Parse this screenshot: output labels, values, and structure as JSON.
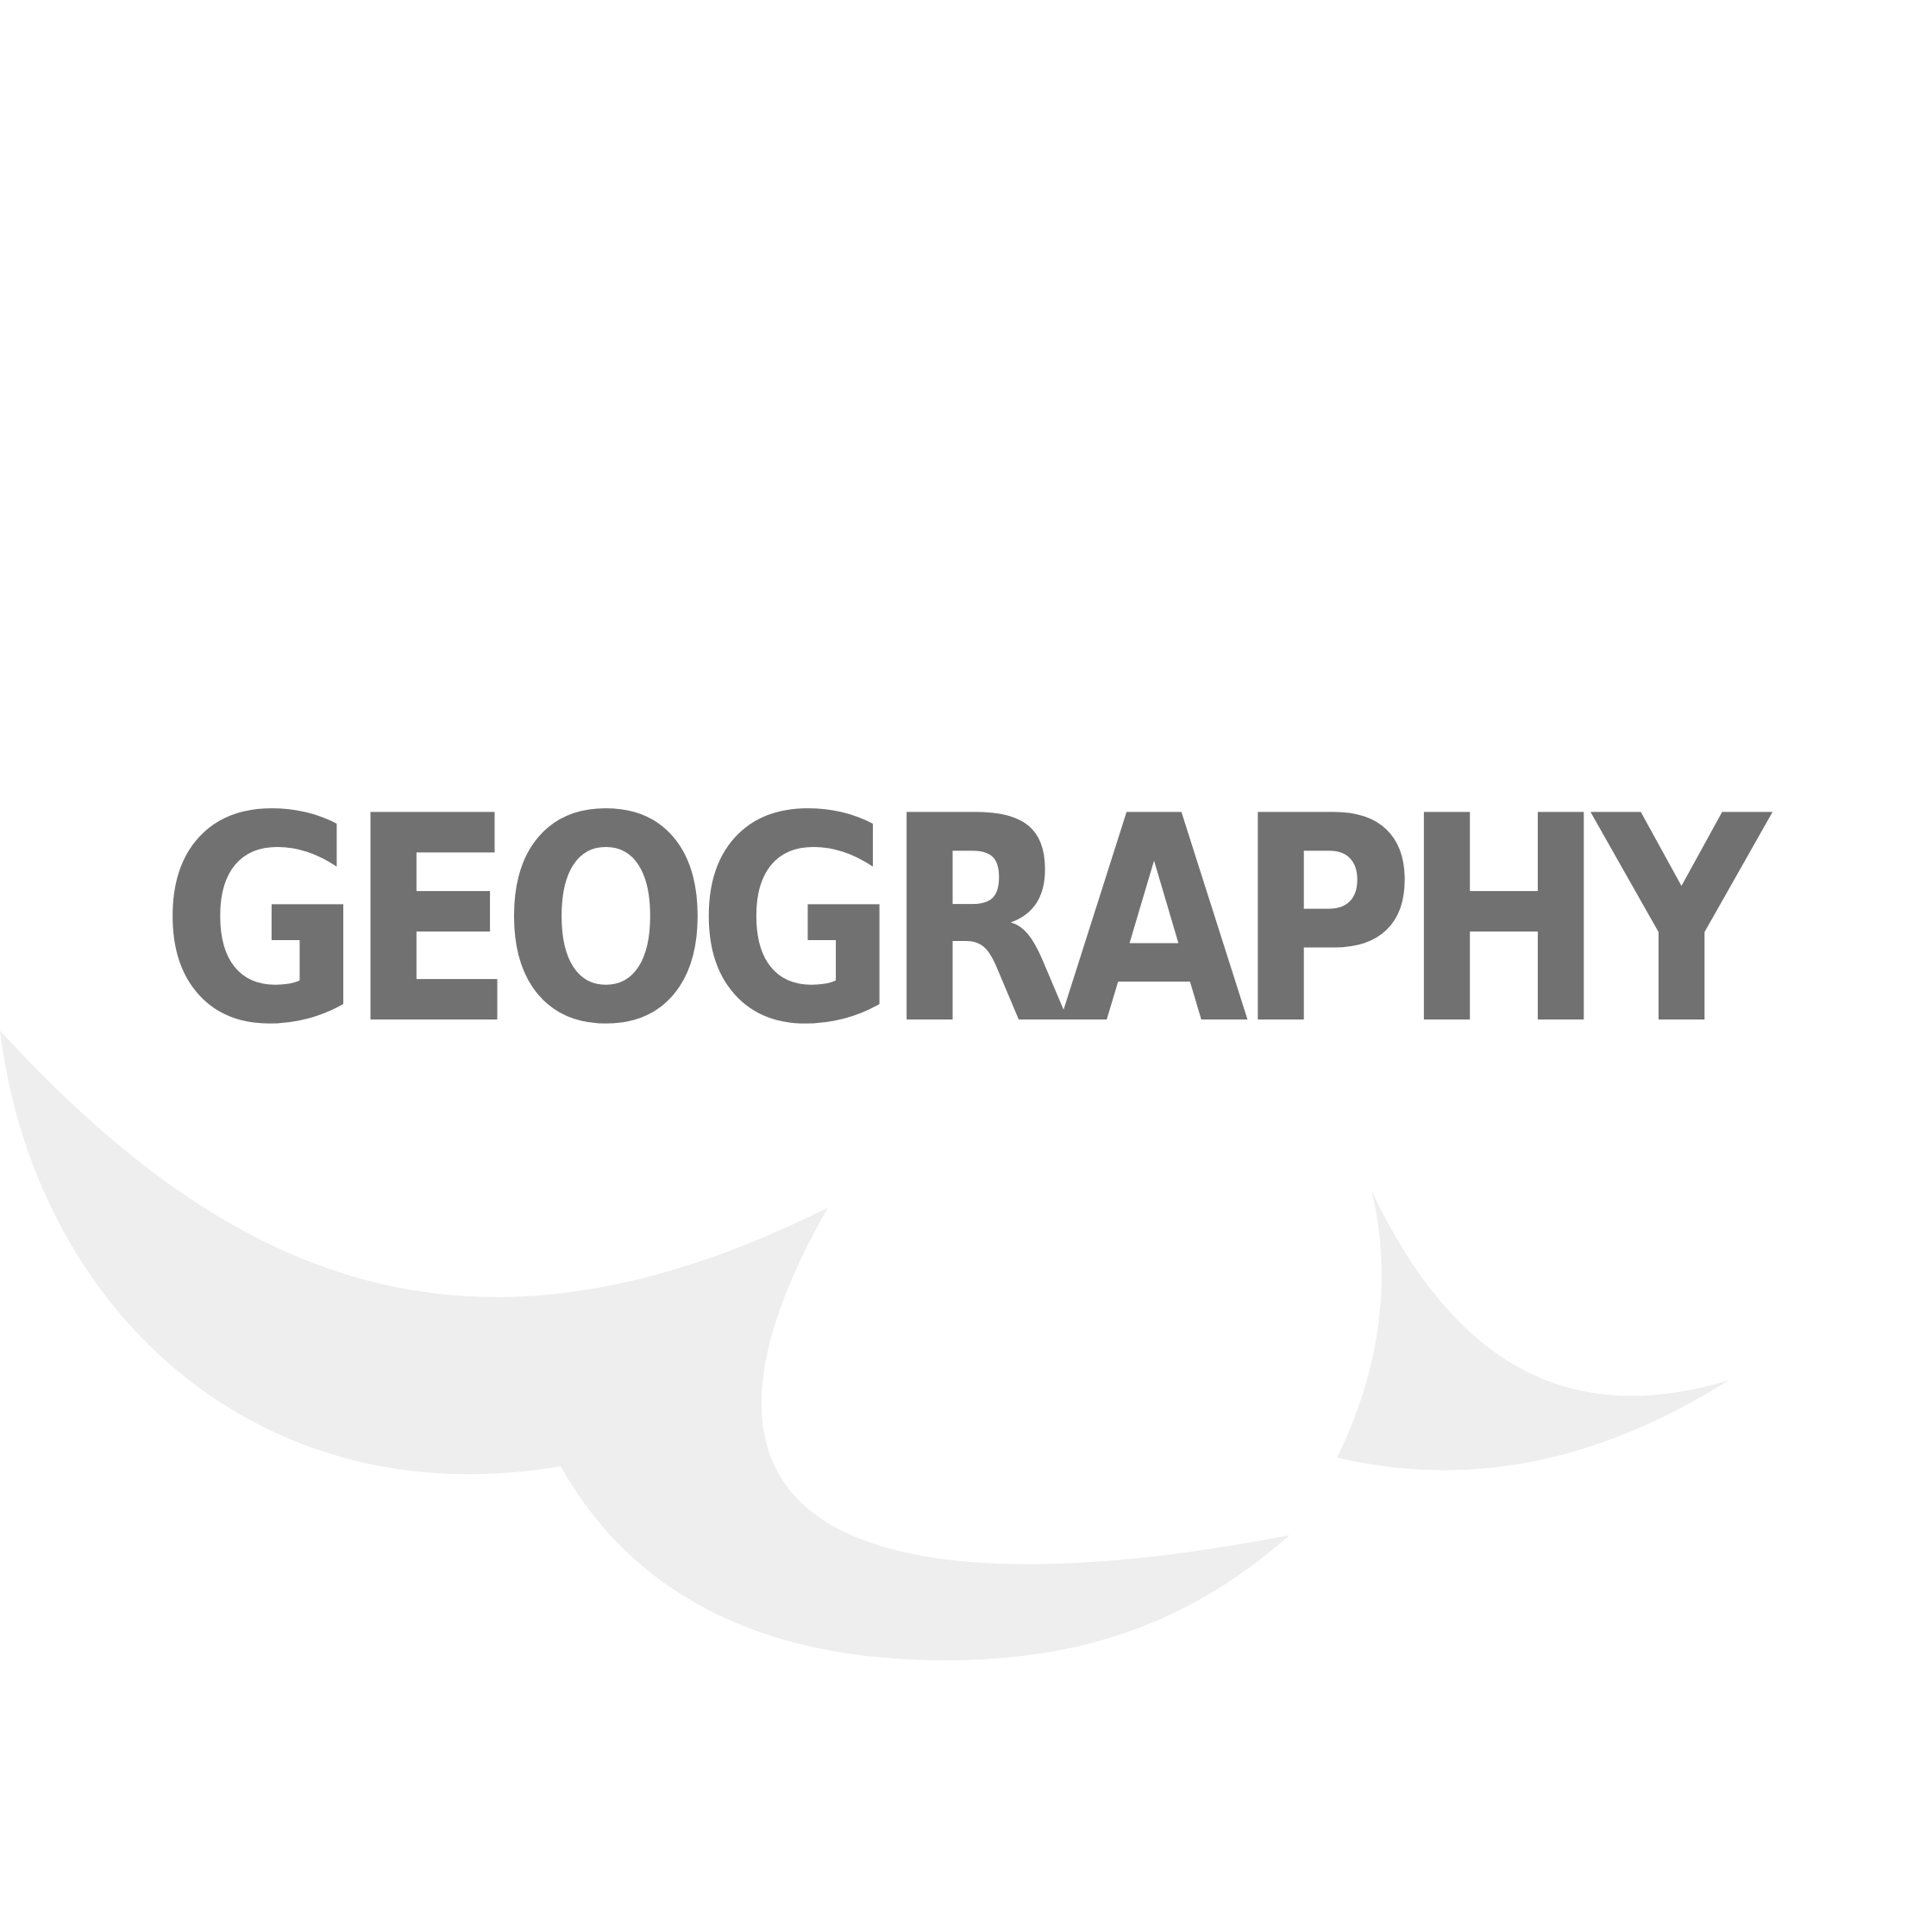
{
  "title": {
    "text": "GEOGRAPHY",
    "color": "#717171"
  },
  "background": {
    "color": "#ffffff",
    "cloud_color": "#eeeeee"
  }
}
